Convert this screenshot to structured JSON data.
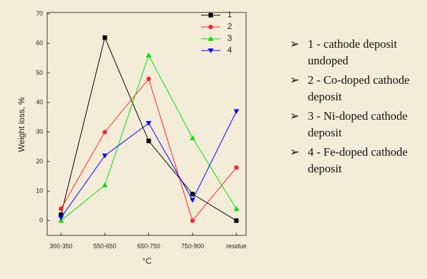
{
  "chart_data": {
    "type": "line",
    "categories": [
      "300-350",
      "550-650",
      "650-750",
      "750-900",
      "residue"
    ],
    "series": [
      {
        "name": "1",
        "color": "#000000",
        "marker": "square",
        "values": [
          2,
          62,
          27,
          9,
          0
        ]
      },
      {
        "name": "2",
        "color": "#ff2020",
        "marker": "circle",
        "values": [
          4,
          30,
          48,
          0,
          18
        ]
      },
      {
        "name": "3",
        "color": "#00e000",
        "marker": "triangle-up",
        "values": [
          0,
          12,
          56,
          28,
          4
        ]
      },
      {
        "name": "4",
        "color": "#0000ff",
        "marker": "triangle-down",
        "values": [
          1,
          22,
          33,
          7,
          37
        ]
      }
    ],
    "ylim": [
      -5,
      70.5
    ],
    "yticks": [
      0,
      10,
      20,
      30,
      40,
      50,
      60,
      70
    ],
    "ylabel": "Weight loss, %",
    "xlabel": "°C",
    "legend": "upper right"
  },
  "notes": [
    "1 - cathode deposit undoped",
    "2 - Co-doped cathode deposit",
    "3 - Ni-doped cathode deposit",
    "4 - Fe-doped cathode deposit"
  ]
}
